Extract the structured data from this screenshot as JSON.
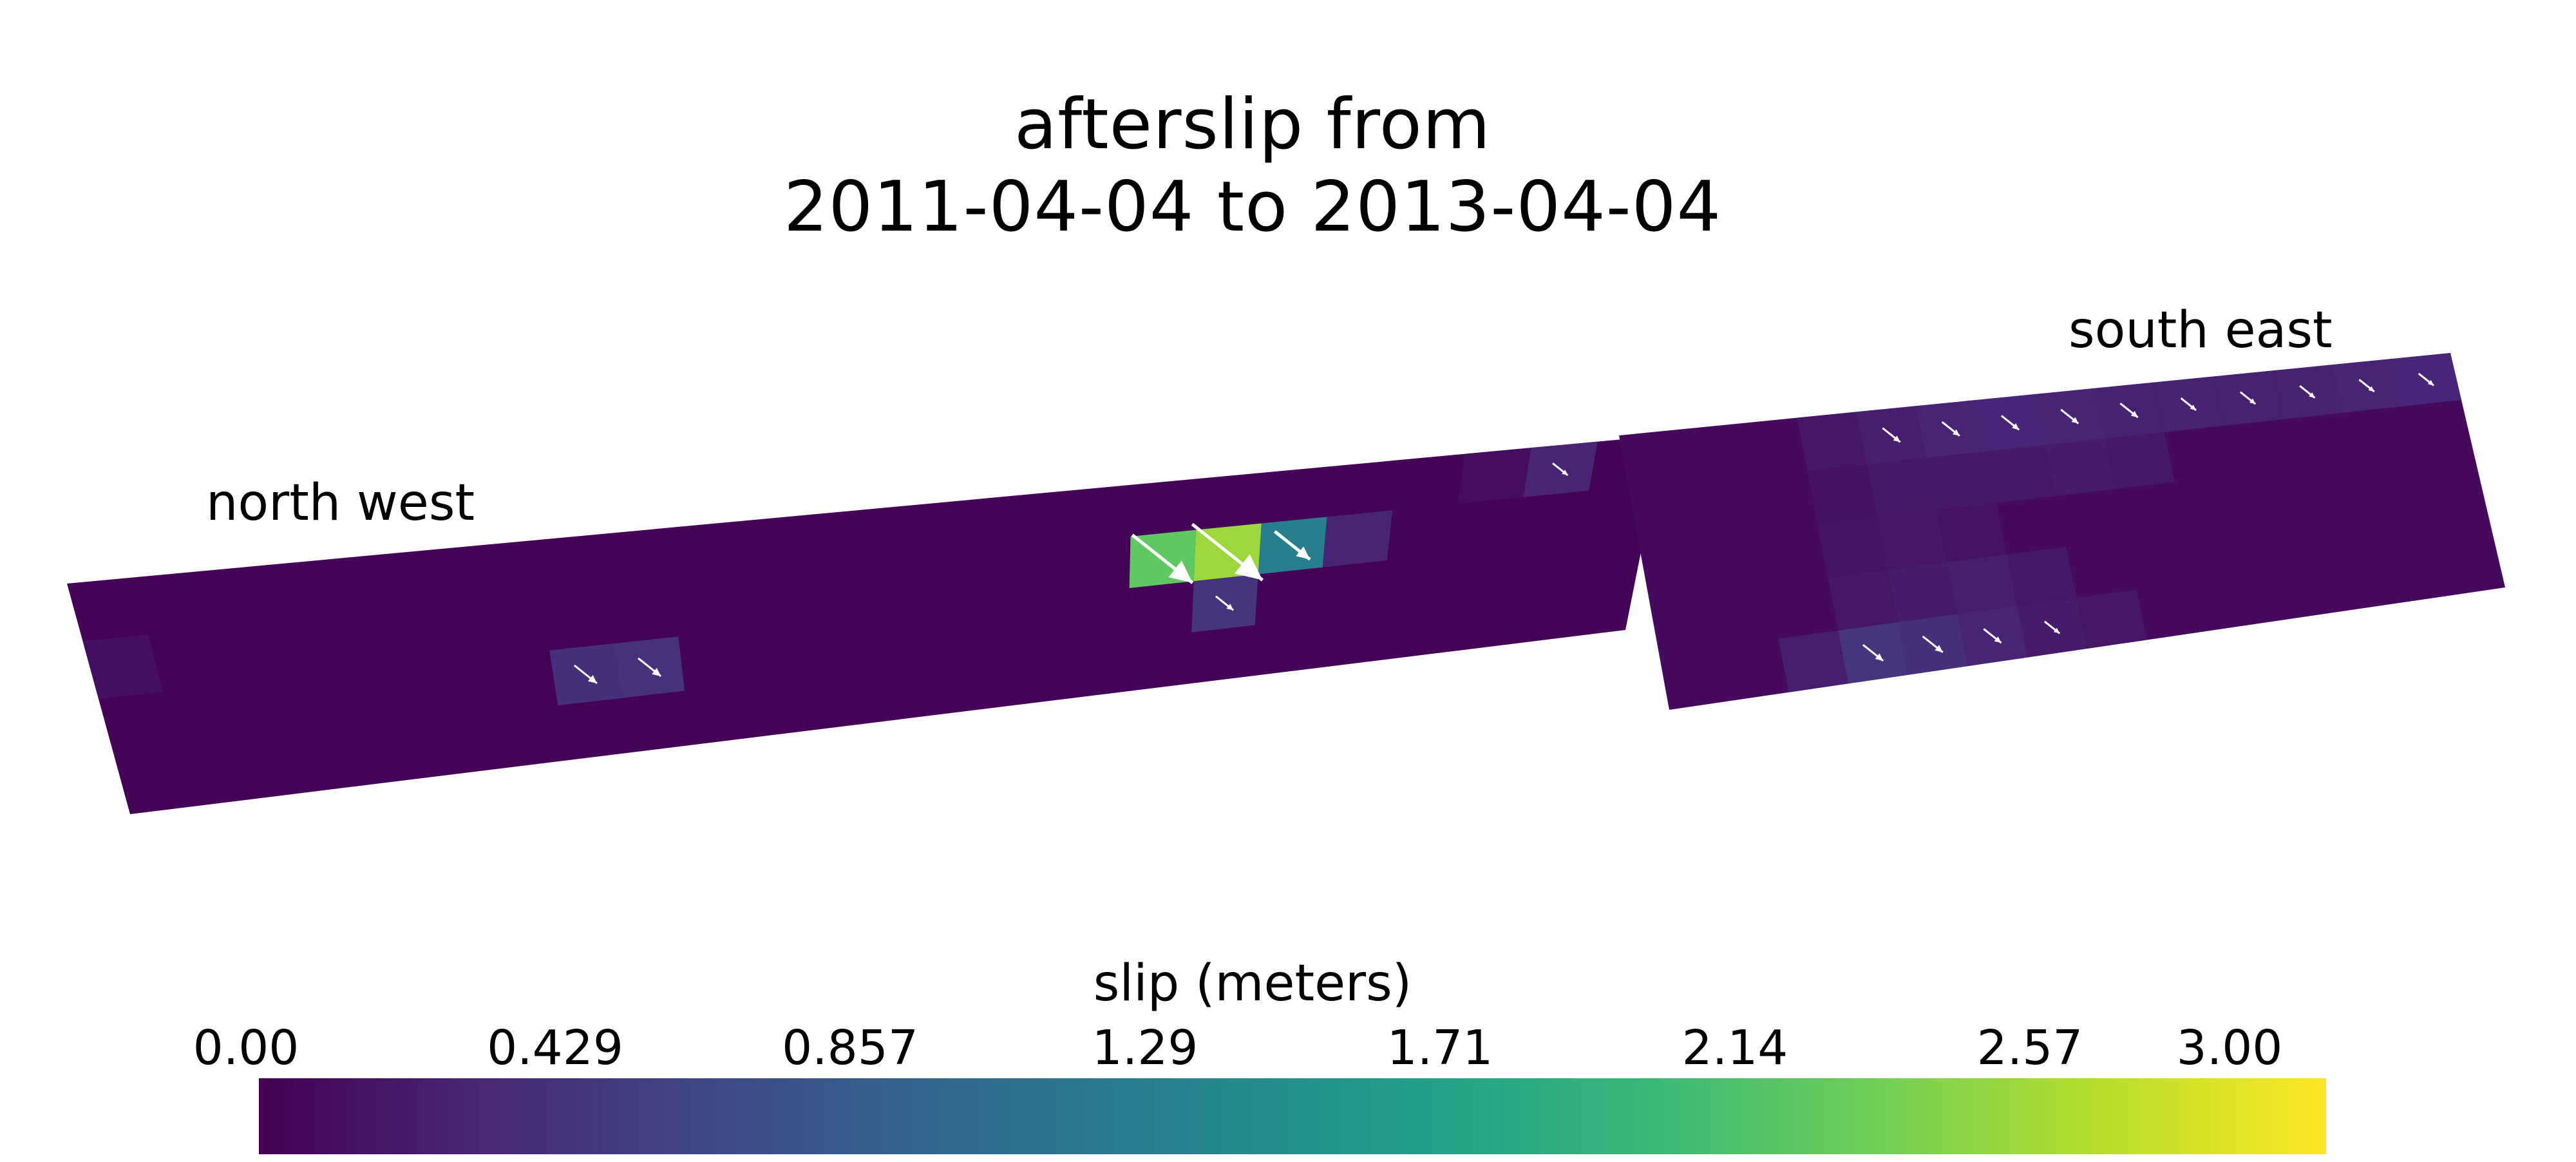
{
  "title": {
    "line1": "afterslip from",
    "line2": "2011-04-04 to 2013-04-04"
  },
  "labels": {
    "north_west": "north west",
    "south_east": "south east"
  },
  "colorbar": {
    "title": "slip (meters)",
    "colormap": "viridis",
    "range": [
      0.0,
      3.0
    ],
    "ticks": [
      "0.00",
      "0.429",
      "0.857",
      "1.29",
      "1.71",
      "2.14",
      "2.57",
      "3.00"
    ]
  },
  "chart_data": {
    "type": "heatmap",
    "colormap": "viridis",
    "vmin": 0.0,
    "vmax": 3.0,
    "segments": [
      {
        "label": "north west",
        "strike_patches": 24,
        "dip_patches": 4,
        "background_slip": 0.02,
        "patches": [
          {
            "s": 0,
            "d": 1,
            "slip": 0.12
          },
          {
            "s": 7,
            "d": 2,
            "slip": 0.4,
            "arrow": 0.25
          },
          {
            "s": 8,
            "d": 2,
            "slip": 0.42,
            "arrow": 0.25
          },
          {
            "s": 16,
            "d": 1,
            "slip": 2.25,
            "arrow": 1.0
          },
          {
            "s": 17,
            "d": 1,
            "slip": 2.55,
            "arrow": 1.2
          },
          {
            "s": 18,
            "d": 1,
            "slip": 1.3,
            "arrow": 0.5
          },
          {
            "s": 19,
            "d": 1,
            "slip": 0.3
          },
          {
            "s": 17,
            "d": 2,
            "slip": 0.45,
            "arrow": 0.15
          },
          {
            "s": 21,
            "d": 0,
            "slip": 0.1
          },
          {
            "s": 22,
            "d": 0,
            "slip": 0.3,
            "arrow": 0.1
          }
        ]
      },
      {
        "label": "south east",
        "strike_patches": 14,
        "dip_patches": 5,
        "background_slip": 0.08,
        "patches": [
          {
            "s": 3,
            "d": 0,
            "slip": 0.18
          },
          {
            "s": 4,
            "d": 0,
            "slip": 0.25,
            "arrow": 0.15
          },
          {
            "s": 5,
            "d": 0,
            "slip": 0.3,
            "arrow": 0.15
          },
          {
            "s": 6,
            "d": 0,
            "slip": 0.32,
            "arrow": 0.15
          },
          {
            "s": 7,
            "d": 0,
            "slip": 0.3,
            "arrow": 0.15
          },
          {
            "s": 8,
            "d": 0,
            "slip": 0.28,
            "arrow": 0.15
          },
          {
            "s": 9,
            "d": 0,
            "slip": 0.28,
            "arrow": 0.1
          },
          {
            "s": 10,
            "d": 0,
            "slip": 0.28,
            "arrow": 0.1
          },
          {
            "s": 11,
            "d": 0,
            "slip": 0.28,
            "arrow": 0.1
          },
          {
            "s": 12,
            "d": 0,
            "slip": 0.3,
            "arrow": 0.1
          },
          {
            "s": 13,
            "d": 0,
            "slip": 0.32,
            "arrow": 0.1
          },
          {
            "s": 3,
            "d": 1,
            "slip": 0.14
          },
          {
            "s": 4,
            "d": 1,
            "slip": 0.2
          },
          {
            "s": 5,
            "d": 1,
            "slip": 0.2
          },
          {
            "s": 6,
            "d": 1,
            "slip": 0.2
          },
          {
            "s": 7,
            "d": 1,
            "slip": 0.22
          },
          {
            "s": 8,
            "d": 1,
            "slip": 0.2
          },
          {
            "s": 3,
            "d": 2,
            "slip": 0.16
          },
          {
            "s": 4,
            "d": 2,
            "slip": 0.18
          },
          {
            "s": 5,
            "d": 2,
            "slip": 0.15
          },
          {
            "s": 3,
            "d": 3,
            "slip": 0.18
          },
          {
            "s": 4,
            "d": 3,
            "slip": 0.22
          },
          {
            "s": 5,
            "d": 3,
            "slip": 0.25
          },
          {
            "s": 6,
            "d": 3,
            "slip": 0.2
          },
          {
            "s": 2,
            "d": 4,
            "slip": 0.25
          },
          {
            "s": 3,
            "d": 4,
            "slip": 0.45,
            "arrow": 0.2
          },
          {
            "s": 4,
            "d": 4,
            "slip": 0.4,
            "arrow": 0.2
          },
          {
            "s": 5,
            "d": 4,
            "slip": 0.3,
            "arrow": 0.15
          },
          {
            "s": 6,
            "d": 4,
            "slip": 0.22,
            "arrow": 0.1
          },
          {
            "s": 7,
            "d": 4,
            "slip": 0.18
          }
        ]
      }
    ]
  }
}
